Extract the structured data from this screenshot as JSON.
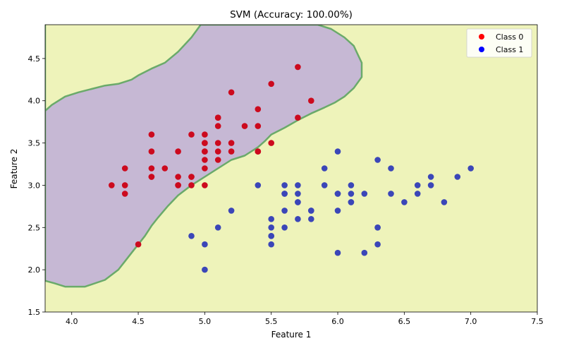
{
  "chart_data": {
    "type": "scatter",
    "title": "SVM (Accuracy: 100.00%)",
    "xlabel": "Feature 1",
    "ylabel": "Feature 2",
    "xlim": [
      3.8,
      7.5
    ],
    "ylim": [
      1.5,
      4.9
    ],
    "xticks": [
      "4.0",
      "4.5",
      "5.0",
      "5.5",
      "6.0",
      "6.5",
      "7.0",
      "7.5"
    ],
    "yticks": [
      "1.5",
      "2.0",
      "2.5",
      "3.0",
      "3.5",
      "4.0",
      "4.5"
    ],
    "xtick_values": [
      4.0,
      4.5,
      5.0,
      5.5,
      6.0,
      6.5,
      7.0,
      7.5
    ],
    "ytick_values": [
      1.5,
      2.0,
      2.5,
      3.0,
      3.5,
      4.0,
      4.5
    ],
    "legend_position": "top-right",
    "colors": {
      "class0": "#cc0a1e",
      "class1": "#3b46b8",
      "legend0": "#ff0000",
      "legend1": "#0000ff",
      "region0": "#c6b8d4",
      "region1": "#eef3ba",
      "boundary": "#6aaa6a"
    },
    "decision_boundary": [
      [
        3.8,
        3.88
      ],
      [
        3.85,
        3.95
      ],
      [
        3.95,
        4.05
      ],
      [
        4.05,
        4.1
      ],
      [
        4.15,
        4.14
      ],
      [
        4.25,
        4.18
      ],
      [
        4.35,
        4.2
      ],
      [
        4.45,
        4.25
      ],
      [
        4.5,
        4.3
      ],
      [
        4.6,
        4.38
      ],
      [
        4.7,
        4.45
      ],
      [
        4.8,
        4.58
      ],
      [
        4.9,
        4.75
      ],
      [
        4.97,
        4.9
      ],
      [
        5.85,
        4.9
      ],
      [
        5.95,
        4.85
      ],
      [
        6.05,
        4.75
      ],
      [
        6.12,
        4.65
      ],
      [
        6.15,
        4.55
      ],
      [
        6.18,
        4.45
      ],
      [
        6.18,
        4.28
      ],
      [
        6.12,
        4.15
      ],
      [
        6.05,
        4.05
      ],
      [
        5.98,
        3.98
      ],
      [
        5.9,
        3.92
      ],
      [
        5.8,
        3.85
      ],
      [
        5.7,
        3.77
      ],
      [
        5.6,
        3.68
      ],
      [
        5.5,
        3.6
      ],
      [
        5.45,
        3.52
      ],
      [
        5.4,
        3.45
      ],
      [
        5.3,
        3.35
      ],
      [
        5.2,
        3.3
      ],
      [
        5.1,
        3.2
      ],
      [
        5.0,
        3.1
      ],
      [
        4.9,
        3.0
      ],
      [
        4.8,
        2.88
      ],
      [
        4.72,
        2.75
      ],
      [
        4.65,
        2.62
      ],
      [
        4.6,
        2.52
      ],
      [
        4.55,
        2.4
      ],
      [
        4.5,
        2.3
      ],
      [
        4.45,
        2.2
      ],
      [
        4.4,
        2.1
      ],
      [
        4.35,
        2.0
      ],
      [
        4.25,
        1.88
      ],
      [
        4.1,
        1.8
      ],
      [
        3.95,
        1.8
      ],
      [
        3.87,
        1.84
      ],
      [
        3.8,
        1.87
      ]
    ],
    "series": [
      {
        "name": "Class 0",
        "x": [
          4.3,
          4.4,
          4.4,
          4.4,
          4.5,
          4.6,
          4.6,
          4.6,
          4.6,
          4.6,
          4.7,
          4.8,
          4.8,
          4.8,
          4.8,
          4.9,
          4.9,
          4.9,
          4.9,
          5.0,
          5.0,
          5.0,
          5.0,
          5.0,
          5.0,
          5.0,
          5.0,
          5.1,
          5.1,
          5.1,
          5.1,
          5.1,
          5.1,
          5.2,
          5.2,
          5.2,
          5.3,
          5.4,
          5.4,
          5.4,
          5.4,
          5.5,
          5.5,
          5.7,
          5.7,
          5.8
        ],
        "y": [
          3.0,
          2.9,
          3.0,
          3.2,
          2.3,
          3.1,
          3.2,
          3.4,
          3.6,
          3.1,
          3.2,
          3.0,
          3.1,
          3.4,
          3.0,
          3.0,
          3.1,
          3.6,
          3.1,
          3.0,
          3.2,
          3.3,
          3.4,
          3.5,
          3.6,
          3.5,
          3.4,
          3.3,
          3.4,
          3.5,
          3.7,
          3.8,
          3.8,
          3.4,
          3.5,
          4.1,
          3.7,
          3.4,
          3.7,
          3.9,
          3.4,
          3.5,
          4.2,
          3.8,
          4.4,
          4.0
        ]
      },
      {
        "name": "Class 1",
        "x": [
          4.9,
          5.0,
          5.0,
          5.1,
          5.2,
          5.4,
          5.5,
          5.5,
          5.5,
          5.5,
          5.5,
          5.6,
          5.6,
          5.6,
          5.6,
          5.6,
          5.7,
          5.7,
          5.7,
          5.7,
          5.7,
          5.8,
          5.8,
          5.8,
          5.9,
          5.9,
          6.0,
          6.0,
          6.0,
          6.0,
          6.0,
          6.1,
          6.1,
          6.1,
          6.1,
          6.2,
          6.2,
          6.3,
          6.3,
          6.3,
          6.3,
          6.4,
          6.4,
          6.5,
          6.6,
          6.6,
          6.7,
          6.7,
          6.8,
          6.9,
          7.0
        ],
        "y": [
          2.4,
          2.0,
          2.3,
          2.5,
          2.7,
          3.0,
          2.3,
          2.4,
          2.5,
          2.6,
          2.4,
          2.5,
          2.7,
          2.9,
          3.0,
          2.9,
          2.6,
          2.8,
          2.9,
          3.0,
          2.8,
          2.6,
          2.7,
          2.7,
          3.0,
          3.2,
          2.2,
          2.7,
          2.9,
          3.4,
          2.9,
          2.8,
          2.9,
          3.0,
          2.8,
          2.2,
          2.9,
          2.3,
          2.5,
          3.3,
          2.5,
          2.9,
          3.2,
          2.8,
          2.9,
          3.0,
          3.0,
          3.1,
          2.8,
          3.1,
          3.2
        ]
      }
    ],
    "legend": [
      "Class 0",
      "Class 1"
    ]
  }
}
